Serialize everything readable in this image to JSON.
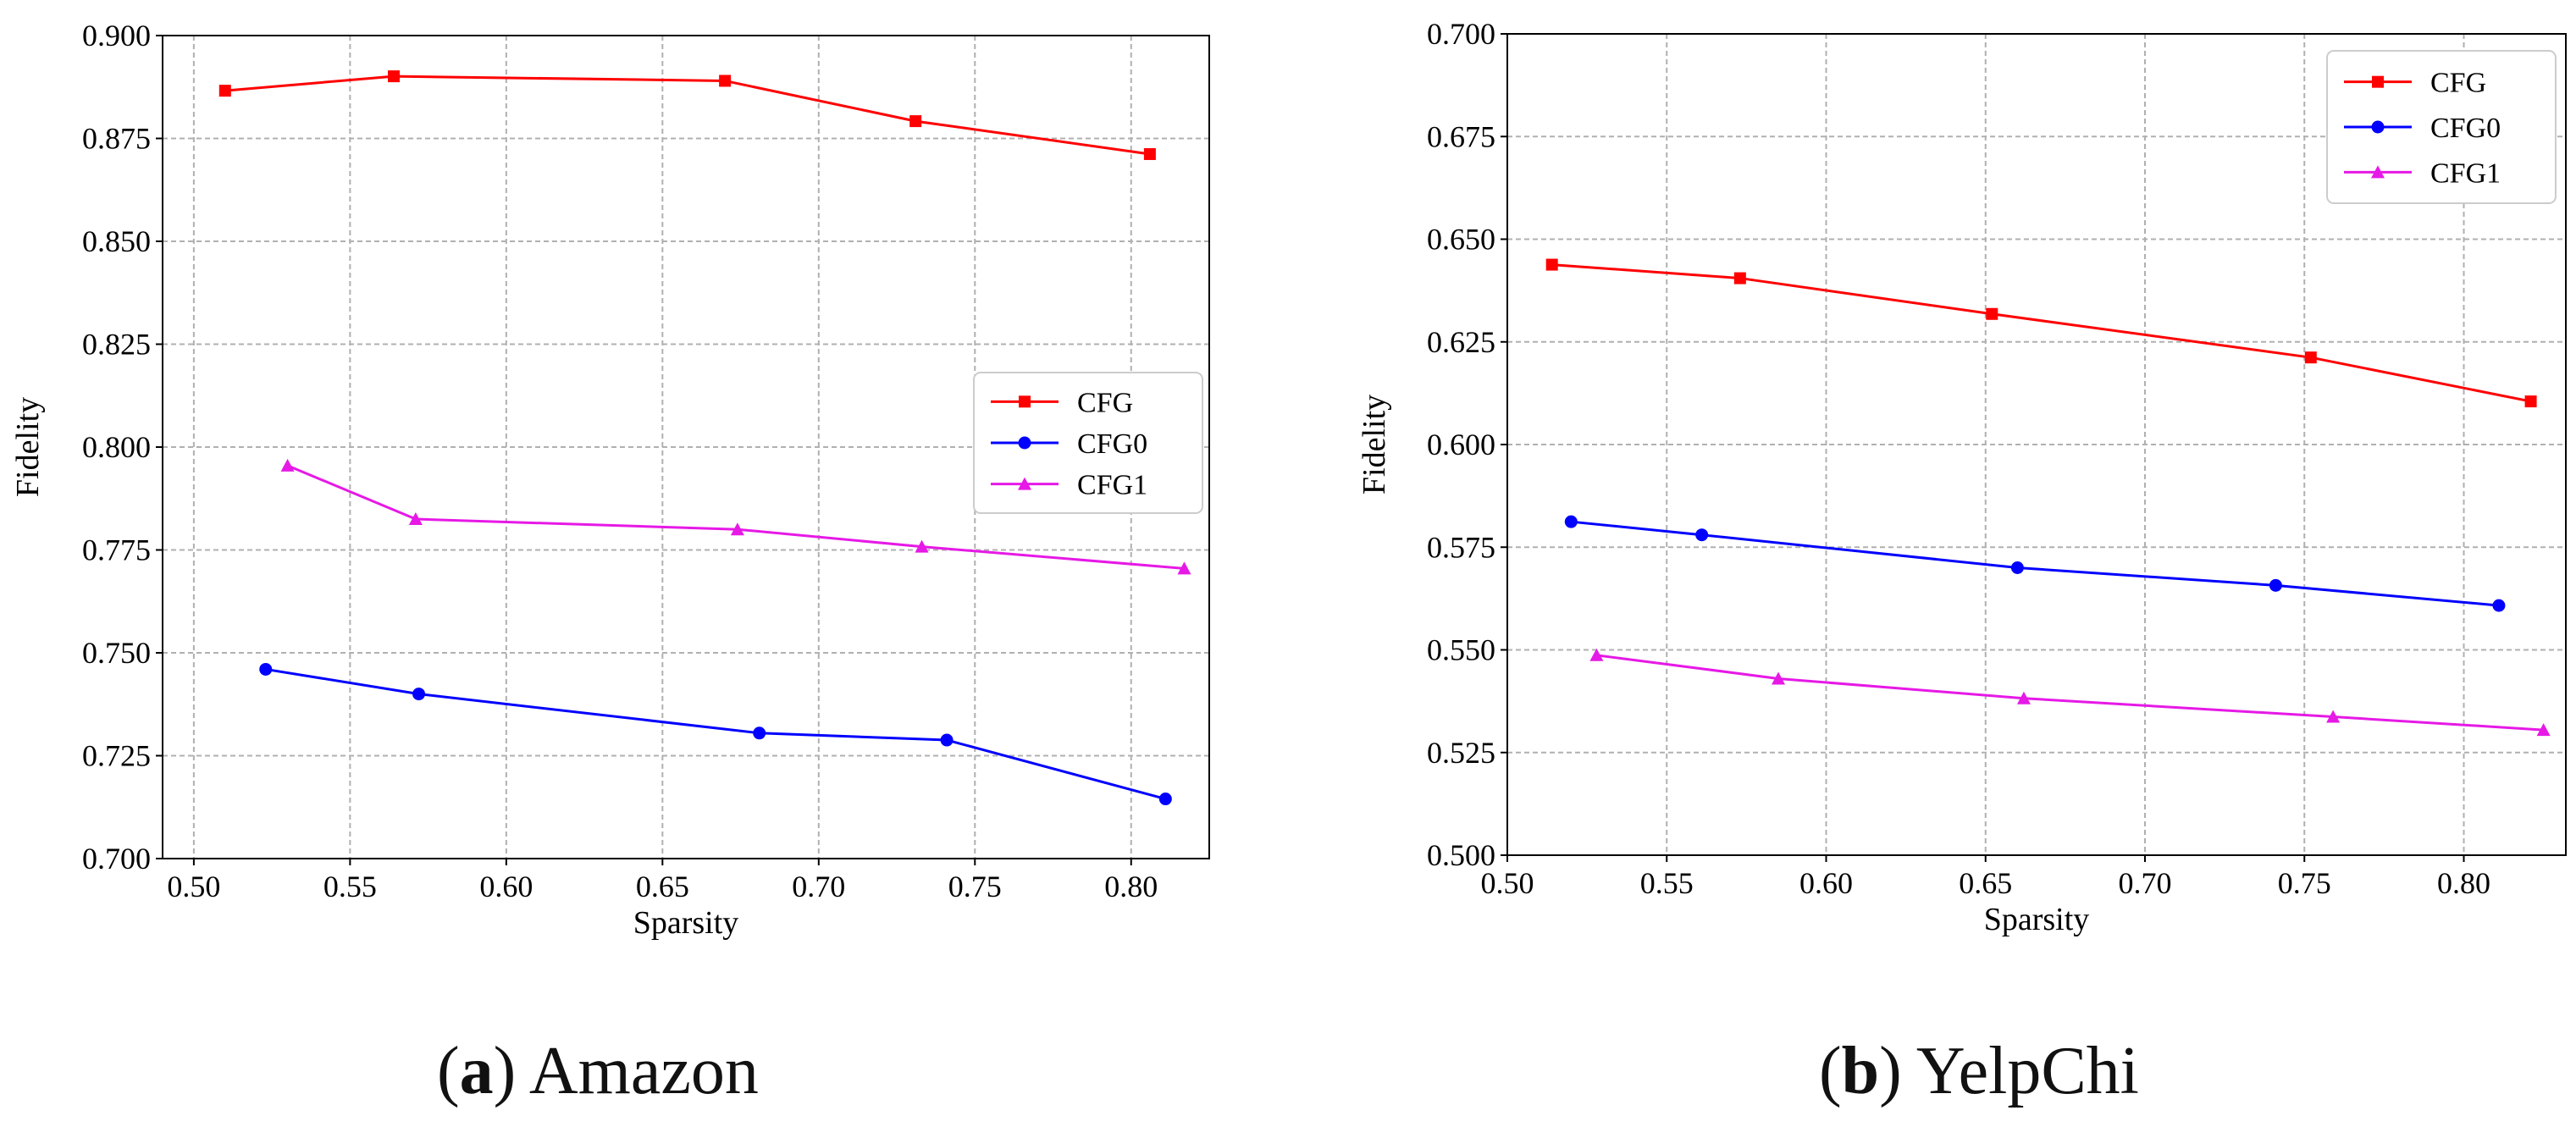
{
  "figures": [
    {
      "letter": "a",
      "name": "Amazon"
    },
    {
      "letter": "b",
      "name": "YelpChi"
    }
  ],
  "colors": {
    "CFG": "#ff0000",
    "CFG0": "#0000ff",
    "CFG1": "#e619e6"
  },
  "chart_data": [
    {
      "type": "line",
      "title": "Amazon",
      "xlabel": "Sparsity",
      "ylabel": "Fidelity",
      "xlim": [
        0.49,
        0.825
      ],
      "ylim": [
        0.7,
        0.9
      ],
      "xticks": [
        "0.50",
        "0.55",
        "0.60",
        "0.65",
        "0.70",
        "0.75",
        "0.80"
      ],
      "yticks": [
        "0.700",
        "0.725",
        "0.750",
        "0.775",
        "0.800",
        "0.825",
        "0.850",
        "0.875",
        "0.900"
      ],
      "grid": true,
      "legend_position": "center-right",
      "series": [
        {
          "name": "CFG",
          "marker": "square",
          "x": [
            0.51,
            0.564,
            0.67,
            0.731,
            0.806
          ],
          "y": [
            0.8866,
            0.8901,
            0.889,
            0.8792,
            0.8712
          ]
        },
        {
          "name": "CFG0",
          "marker": "circle",
          "x": [
            0.523,
            0.572,
            0.681,
            0.741,
            0.811
          ],
          "y": [
            0.746,
            0.74,
            0.7305,
            0.7288,
            0.7145
          ]
        },
        {
          "name": "CFG1",
          "marker": "triangle",
          "x": [
            0.53,
            0.571,
            0.674,
            0.733,
            0.817
          ],
          "y": [
            0.7955,
            0.7825,
            0.78,
            0.7758,
            0.7705
          ]
        }
      ]
    },
    {
      "type": "line",
      "title": "YelpChi",
      "xlabel": "Sparsity",
      "ylabel": "Fidelity",
      "xlim": [
        0.5,
        0.832
      ],
      "ylim": [
        0.5,
        0.7
      ],
      "xticks": [
        "0.50",
        "0.55",
        "0.60",
        "0.65",
        "0.70",
        "0.75",
        "0.80"
      ],
      "yticks": [
        "0.500",
        "0.525",
        "0.550",
        "0.575",
        "0.600",
        "0.625",
        "0.650",
        "0.675",
        "0.700"
      ],
      "grid": true,
      "legend_position": "top-right",
      "series": [
        {
          "name": "CFG",
          "marker": "square",
          "x": [
            0.514,
            0.573,
            0.652,
            0.752,
            0.821
          ],
          "y": [
            0.6438,
            0.6405,
            0.6318,
            0.6212,
            0.6105
          ]
        },
        {
          "name": "CFG0",
          "marker": "circle",
          "x": [
            0.52,
            0.561,
            0.66,
            0.741,
            0.811
          ],
          "y": [
            0.5812,
            0.578,
            0.57,
            0.5657,
            0.5608
          ]
        },
        {
          "name": "CFG1",
          "marker": "triangle",
          "x": [
            0.528,
            0.585,
            0.662,
            0.759,
            0.825
          ],
          "y": [
            0.5487,
            0.543,
            0.5382,
            0.5337,
            0.5305
          ]
        }
      ]
    }
  ]
}
